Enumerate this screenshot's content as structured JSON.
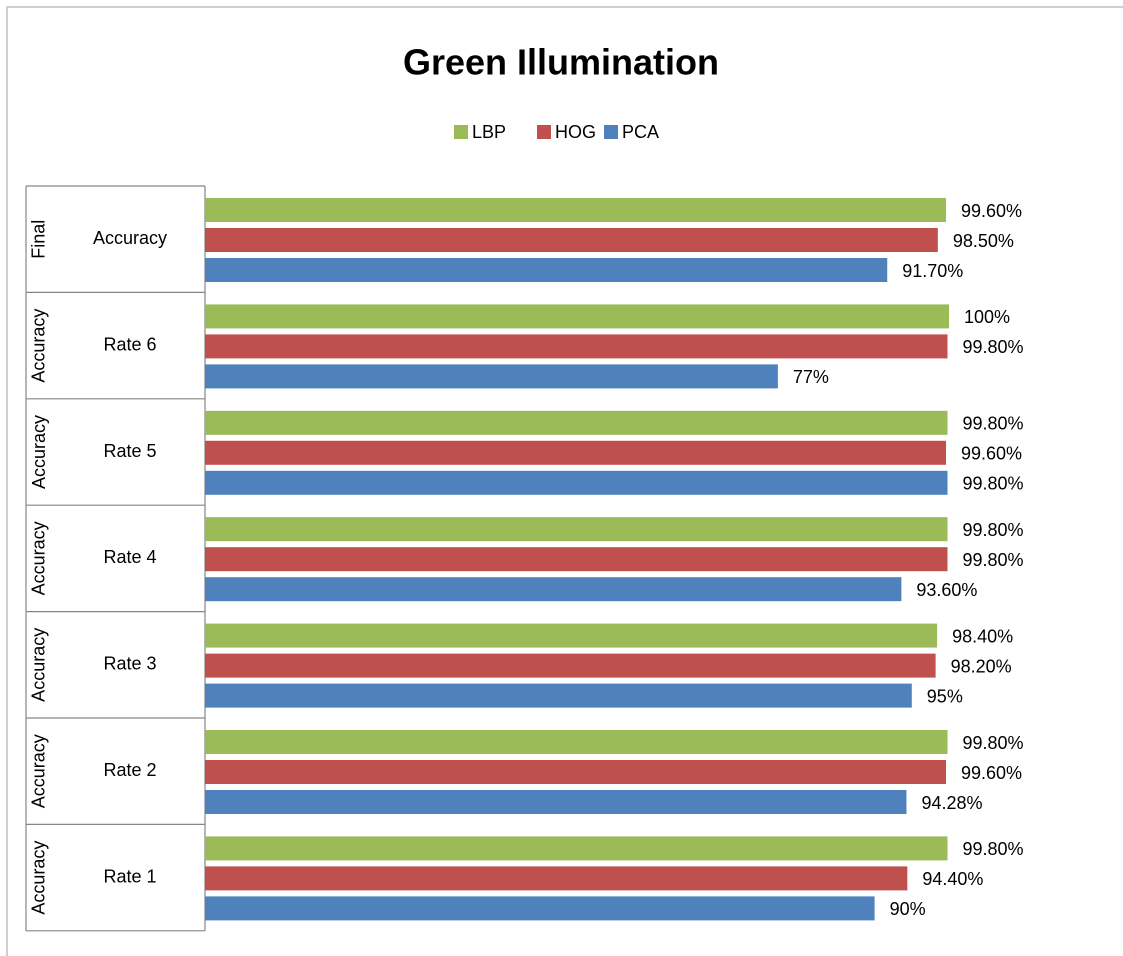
{
  "chart_data": {
    "type": "bar",
    "orientation": "horizontal",
    "title": "Green Illumination",
    "category_groups": [
      "Final",
      "Accuracy",
      "Accuracy",
      "Accuracy",
      "Accuracy",
      "Accuracy",
      "Accuracy"
    ],
    "categories": [
      "Accuracy",
      "Rate 6",
      "Rate 5",
      "Rate 4",
      "Rate 3",
      "Rate 2",
      "Rate 1"
    ],
    "series": [
      {
        "name": "LBP",
        "color": "#9bbb59",
        "values": [
          99.6,
          100,
          99.8,
          99.8,
          98.4,
          99.8,
          99.8
        ],
        "value_labels": [
          "99.60%",
          "100%",
          "99.80%",
          "99.80%",
          "98.40%",
          "99.80%",
          "99.80%"
        ]
      },
      {
        "name": "HOG",
        "color": "#c0504d",
        "values": [
          98.5,
          99.8,
          99.6,
          99.8,
          98.2,
          99.6,
          94.4
        ],
        "value_labels": [
          "98.50%",
          "99.80%",
          "99.60%",
          "99.80%",
          "98.20%",
          "99.60%",
          "94.40%"
        ]
      },
      {
        "name": "PCA",
        "color": "#4f81bd",
        "values": [
          91.7,
          77,
          99.8,
          93.6,
          95,
          94.28,
          90
        ],
        "value_labels": [
          "91.70%",
          "77%",
          "99.80%",
          "93.60%",
          "95%",
          "94.28%",
          "90%"
        ]
      }
    ],
    "xlim": [
      0,
      100
    ],
    "legend": "top"
  }
}
